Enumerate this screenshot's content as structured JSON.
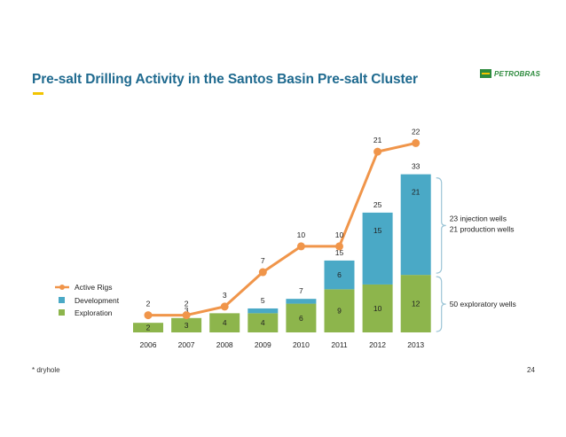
{
  "slide": {
    "title": "Pre-salt Drilling Activity in the Santos Basin Pre-salt Cluster",
    "logo_text": "PETROBRAS",
    "footnote": "* dryhole",
    "page_number": "24"
  },
  "colors": {
    "title": "#1f6a8f",
    "accent": "#f2c400",
    "logo_green": "#2e8b3e",
    "exploration": "#8db54c",
    "development": "#4aa9c6",
    "active_rigs": "#f0954a"
  },
  "chart_data": {
    "type": "bar",
    "stacked": true,
    "categories": [
      "2006",
      "2007",
      "2008",
      "2009",
      "2010",
      "2011",
      "2012",
      "2013"
    ],
    "ylim": [
      0,
      37
    ],
    "series": [
      {
        "name": "Exploration",
        "values": [
          2,
          3,
          4,
          4,
          6,
          9,
          10,
          12
        ],
        "labels": [
          "2",
          "3",
          "4",
          "4",
          "6",
          "9",
          "10",
          "12"
        ]
      },
      {
        "name": "Development",
        "values": [
          0,
          0,
          0,
          1,
          1,
          6,
          15,
          21
        ],
        "labels": [
          "",
          "",
          "",
          "",
          "",
          "6",
          "15",
          "21"
        ]
      }
    ],
    "totals": [
      "2",
      "3",
      "4",
      "5",
      "7",
      "15",
      "25",
      "33"
    ],
    "line_series": {
      "name": "Active Rigs",
      "values": [
        2,
        2,
        3,
        7,
        10,
        10,
        21,
        22
      ],
      "labels": [
        "2",
        "2",
        "3",
        "7",
        "10",
        "10",
        "21",
        "22"
      ],
      "ylim": [
        0,
        24
      ]
    },
    "legend": [
      "Active Rigs",
      "Development",
      "Exploration"
    ],
    "legend_position": "left",
    "annotations": {
      "development_bracket": [
        "23 injection wells",
        "21 production wells"
      ],
      "exploration_bracket": "50 exploratory wells"
    },
    "grid": false
  }
}
